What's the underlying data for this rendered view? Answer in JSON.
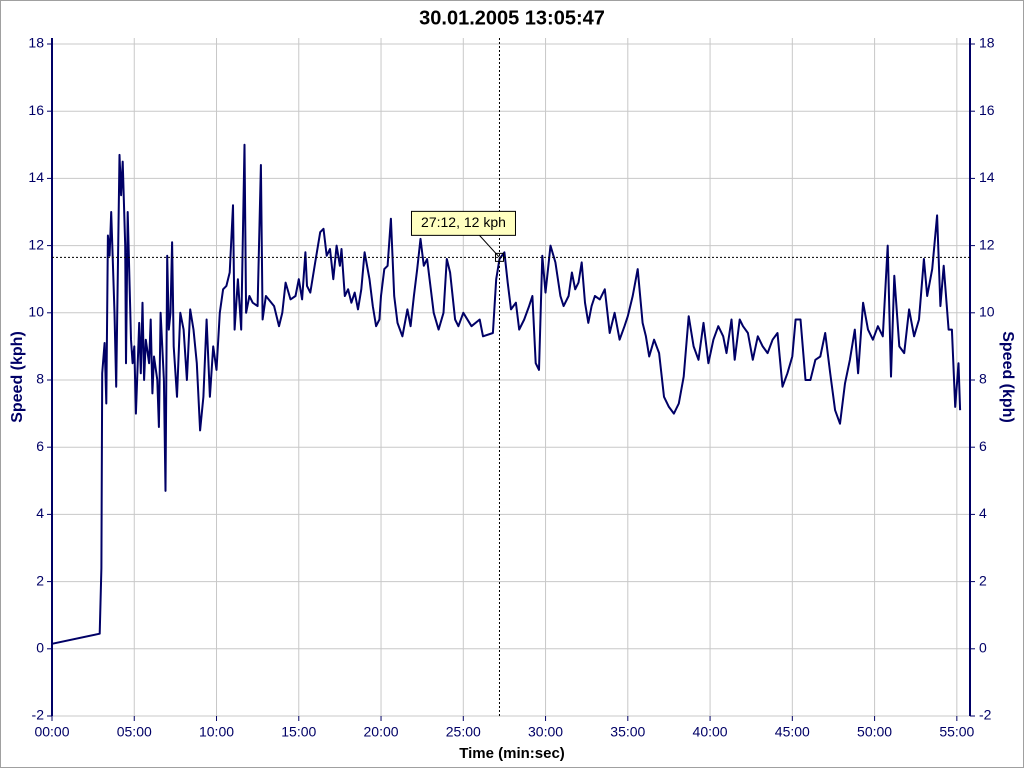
{
  "chart_data": {
    "type": "line",
    "title": "30.01.2005 13:05:47",
    "xlabel": "Time (min:sec)",
    "ylabel": "Speed (kph)",
    "y2label": "Speed (kph)",
    "color": "#000066",
    "grid": true,
    "xlim": [
      0,
      55.8
    ],
    "ylim": [
      -2,
      18
    ],
    "y2lim": [
      -2,
      18
    ],
    "xticks": [
      {
        "value": 0,
        "label": "00:00"
      },
      {
        "value": 5,
        "label": "05:00"
      },
      {
        "value": 10,
        "label": "10:00"
      },
      {
        "value": 15,
        "label": "15:00"
      },
      {
        "value": 20,
        "label": "20:00"
      },
      {
        "value": 25,
        "label": "25:00"
      },
      {
        "value": 30,
        "label": "30:00"
      },
      {
        "value": 35,
        "label": "35:00"
      },
      {
        "value": 40,
        "label": "40:00"
      },
      {
        "value": 45,
        "label": "45:00"
      },
      {
        "value": 50,
        "label": "50:00"
      },
      {
        "value": 55,
        "label": "55:00"
      }
    ],
    "yticks": [
      -2,
      0,
      2,
      4,
      6,
      8,
      10,
      12,
      14,
      16,
      18
    ],
    "y2ticks": [
      -2,
      0,
      2,
      4,
      6,
      8,
      10,
      12,
      14,
      16,
      18
    ],
    "crosshair": {
      "x": 27.2,
      "y": 11.65,
      "label": "27:12, 12 kph"
    },
    "x": [
      0,
      2.9,
      3.0,
      3.05,
      3.2,
      3.3,
      3.4,
      3.5,
      3.6,
      3.8,
      3.9,
      4.1,
      4.2,
      4.3,
      4.45,
      4.5,
      4.6,
      4.8,
      4.9,
      5.0,
      5.1,
      5.3,
      5.4,
      5.5,
      5.6,
      5.7,
      5.9,
      6.0,
      6.1,
      6.2,
      6.4,
      6.5,
      6.6,
      6.8,
      6.9,
      7.0,
      7.1,
      7.2,
      7.3,
      7.4,
      7.6,
      7.8,
      8.0,
      8.2,
      8.4,
      8.6,
      8.8,
      9.0,
      9.2,
      9.4,
      9.6,
      9.8,
      10.0,
      10.2,
      10.4,
      10.6,
      10.8,
      11.0,
      11.1,
      11.3,
      11.5,
      11.7,
      11.8,
      12.0,
      12.2,
      12.5,
      12.7,
      12.8,
      13.0,
      13.5,
      13.8,
      14.0,
      14.2,
      14.5,
      14.8,
      15.0,
      15.2,
      15.4,
      15.5,
      15.7,
      16.0,
      16.3,
      16.5,
      16.7,
      16.9,
      17.1,
      17.3,
      17.5,
      17.6,
      17.8,
      18.0,
      18.2,
      18.4,
      18.6,
      18.8,
      19.0,
      19.3,
      19.5,
      19.7,
      19.9,
      20.0,
      20.2,
      20.4,
      20.6,
      20.8,
      21.0,
      21.3,
      21.6,
      21.8,
      22.0,
      22.2,
      22.4,
      22.6,
      22.8,
      23.0,
      23.2,
      23.5,
      23.8,
      24.0,
      24.2,
      24.5,
      24.7,
      25.0,
      25.5,
      26.0,
      26.2,
      26.8,
      27.0,
      27.2,
      27.5,
      27.7,
      27.9,
      28.2,
      28.4,
      28.7,
      29.0,
      29.2,
      29.4,
      29.6,
      29.8,
      30.0,
      30.3,
      30.6,
      30.9,
      31.1,
      31.4,
      31.6,
      31.8,
      32.0,
      32.2,
      32.4,
      32.6,
      32.8,
      33.0,
      33.3,
      33.6,
      33.9,
      34.2,
      34.5,
      34.8,
      35.0,
      35.3,
      35.6,
      35.9,
      36.1,
      36.3,
      36.6,
      36.9,
      37.2,
      37.5,
      37.8,
      38.1,
      38.4,
      38.7,
      39.0,
      39.3,
      39.6,
      39.9,
      40.2,
      40.5,
      40.8,
      41.0,
      41.3,
      41.5,
      41.8,
      42.0,
      42.3,
      42.6,
      42.9,
      43.2,
      43.5,
      43.8,
      44.1,
      44.4,
      44.7,
      45.0,
      45.2,
      45.5,
      45.8,
      46.1,
      46.4,
      46.7,
      47.0,
      47.3,
      47.6,
      47.9,
      48.2,
      48.5,
      48.8,
      49.0,
      49.3,
      49.6,
      49.9,
      50.2,
      50.5,
      50.8,
      51.0,
      51.2,
      51.5,
      51.8,
      52.1,
      52.4,
      52.7,
      53.0,
      53.2,
      53.5,
      53.8,
      54.0,
      54.2,
      54.5,
      54.7,
      54.9,
      55.1,
      55.2
    ],
    "values": [
      0.15,
      0.45,
      2.4,
      8.2,
      9.1,
      7.3,
      12.3,
      11.7,
      13.0,
      10.0,
      7.8,
      14.7,
      13.5,
      14.5,
      12.0,
      8.5,
      13.0,
      9.2,
      8.5,
      9.0,
      7.0,
      9.7,
      8.2,
      10.3,
      8.0,
      9.2,
      8.5,
      9.8,
      7.6,
      8.7,
      8.0,
      6.6,
      10.0,
      8.0,
      4.7,
      11.7,
      9.5,
      10.0,
      12.1,
      9.0,
      7.5,
      10.0,
      9.5,
      8.0,
      10.1,
      9.5,
      8.5,
      6.5,
      7.5,
      9.8,
      7.5,
      9.0,
      8.3,
      10.0,
      10.7,
      10.8,
      11.2,
      13.2,
      9.5,
      11.0,
      9.5,
      15.0,
      10.0,
      10.5,
      10.3,
      10.2,
      14.4,
      9.8,
      10.5,
      10.2,
      9.6,
      10.0,
      10.9,
      10.4,
      10.5,
      11.0,
      10.4,
      11.8,
      10.8,
      10.6,
      11.5,
      12.4,
      12.5,
      11.7,
      11.9,
      11.0,
      12.0,
      11.4,
      11.9,
      10.5,
      10.7,
      10.3,
      10.6,
      10.1,
      10.7,
      11.8,
      11.0,
      10.2,
      9.6,
      9.8,
      10.5,
      11.3,
      11.4,
      12.8,
      10.5,
      9.7,
      9.3,
      10.1,
      9.6,
      10.5,
      11.3,
      12.2,
      11.4,
      11.6,
      10.8,
      10.0,
      9.5,
      10.0,
      11.6,
      11.2,
      9.8,
      9.6,
      10.0,
      9.6,
      9.8,
      9.3,
      9.4,
      11.0,
      11.6,
      11.8,
      10.9,
      10.1,
      10.3,
      9.5,
      9.8,
      10.2,
      10.5,
      8.5,
      8.3,
      11.7,
      10.6,
      12.0,
      11.5,
      10.5,
      10.2,
      10.5,
      11.2,
      10.7,
      10.9,
      11.5,
      10.3,
      9.7,
      10.2,
      10.5,
      10.4,
      10.7,
      9.4,
      10.0,
      9.2,
      9.6,
      9.9,
      10.5,
      11.3,
      9.7,
      9.3,
      8.7,
      9.2,
      8.8,
      7.5,
      7.2,
      7.0,
      7.3,
      8.1,
      9.9,
      9.0,
      8.6,
      9.7,
      8.5,
      9.2,
      9.6,
      9.3,
      8.8,
      9.8,
      8.6,
      9.8,
      9.6,
      9.4,
      8.6,
      9.3,
      9.0,
      8.8,
      9.2,
      9.4,
      7.8,
      8.2,
      8.7,
      9.8,
      9.8,
      8.0,
      8.0,
      8.6,
      8.7,
      9.4,
      8.2,
      7.1,
      6.7,
      7.9,
      8.6,
      9.5,
      8.2,
      10.3,
      9.5,
      9.2,
      9.6,
      9.3,
      12.0,
      8.1,
      11.1,
      9.0,
      8.8,
      10.1,
      9.3,
      9.8,
      11.6,
      10.5,
      11.3,
      12.9,
      10.2,
      11.4,
      9.5,
      9.5,
      7.2,
      8.5,
      7.1
    ]
  }
}
